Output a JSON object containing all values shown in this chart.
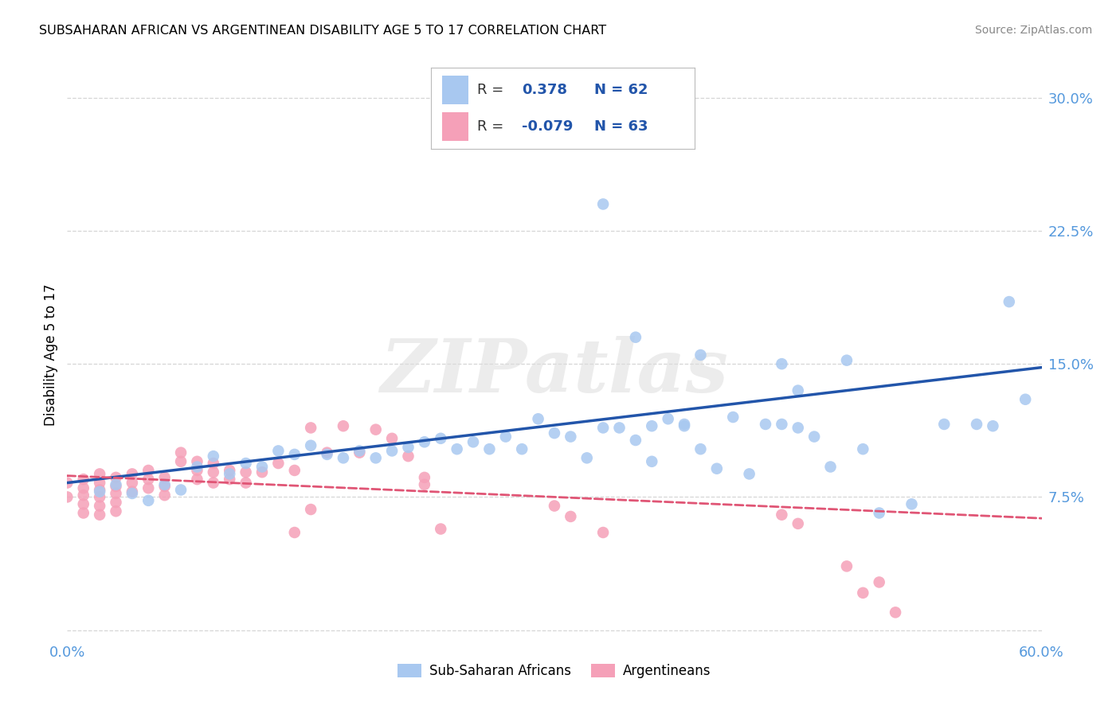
{
  "title": "SUBSAHARAN AFRICAN VS ARGENTINEAN DISABILITY AGE 5 TO 17 CORRELATION CHART",
  "source": "Source: ZipAtlas.com",
  "ylabel": "Disability Age 5 to 17",
  "xlim": [
    0.0,
    0.6
  ],
  "ylim": [
    -0.005,
    0.315
  ],
  "yticks": [
    0.0,
    0.075,
    0.15,
    0.225,
    0.3
  ],
  "ytick_labels": [
    "",
    "7.5%",
    "15.0%",
    "22.5%",
    "30.0%"
  ],
  "xticks": [
    0.0,
    0.15,
    0.3,
    0.45,
    0.6
  ],
  "xtick_labels": [
    "0.0%",
    "",
    "",
    "",
    "60.0%"
  ],
  "r_blue": "0.378",
  "n_blue": "62",
  "r_pink": "-0.079",
  "n_pink": "63",
  "legend_label_blue": "Sub-Saharan Africans",
  "legend_label_pink": "Argentineans",
  "blue_color": "#A8C8F0",
  "blue_line_color": "#2255AA",
  "pink_color": "#F5A0B8",
  "pink_line_color": "#E05575",
  "background_color": "#FFFFFF",
  "grid_color": "#CCCCCC",
  "watermark": "ZIPatlas",
  "blue_scatter_x": [
    0.33,
    0.02,
    0.03,
    0.04,
    0.05,
    0.06,
    0.07,
    0.08,
    0.09,
    0.1,
    0.11,
    0.12,
    0.13,
    0.14,
    0.15,
    0.16,
    0.17,
    0.18,
    0.19,
    0.2,
    0.21,
    0.22,
    0.23,
    0.24,
    0.25,
    0.26,
    0.27,
    0.28,
    0.29,
    0.3,
    0.31,
    0.32,
    0.33,
    0.34,
    0.35,
    0.36,
    0.37,
    0.38,
    0.39,
    0.4,
    0.41,
    0.42,
    0.43,
    0.44,
    0.45,
    0.46,
    0.47,
    0.48,
    0.49,
    0.5,
    0.52,
    0.54,
    0.56,
    0.57,
    0.58,
    0.38,
    0.39,
    0.35,
    0.36,
    0.44,
    0.45,
    0.59
  ],
  "blue_scatter_y": [
    0.24,
    0.078,
    0.082,
    0.077,
    0.073,
    0.082,
    0.079,
    0.092,
    0.098,
    0.088,
    0.094,
    0.092,
    0.101,
    0.099,
    0.104,
    0.099,
    0.097,
    0.101,
    0.097,
    0.101,
    0.103,
    0.106,
    0.108,
    0.102,
    0.106,
    0.102,
    0.109,
    0.102,
    0.119,
    0.111,
    0.109,
    0.097,
    0.114,
    0.114,
    0.107,
    0.115,
    0.119,
    0.116,
    0.102,
    0.091,
    0.12,
    0.088,
    0.116,
    0.116,
    0.114,
    0.109,
    0.092,
    0.152,
    0.102,
    0.066,
    0.071,
    0.116,
    0.116,
    0.115,
    0.185,
    0.115,
    0.155,
    0.165,
    0.095,
    0.15,
    0.135,
    0.13
  ],
  "pink_scatter_x": [
    0.0,
    0.0,
    0.01,
    0.01,
    0.01,
    0.01,
    0.01,
    0.02,
    0.02,
    0.02,
    0.02,
    0.02,
    0.02,
    0.03,
    0.03,
    0.03,
    0.03,
    0.03,
    0.04,
    0.04,
    0.04,
    0.05,
    0.05,
    0.05,
    0.06,
    0.06,
    0.06,
    0.07,
    0.07,
    0.08,
    0.08,
    0.08,
    0.09,
    0.09,
    0.09,
    0.1,
    0.1,
    0.11,
    0.11,
    0.12,
    0.13,
    0.14,
    0.15,
    0.16,
    0.17,
    0.18,
    0.19,
    0.2,
    0.21,
    0.22,
    0.22,
    0.23,
    0.14,
    0.15,
    0.3,
    0.31,
    0.33,
    0.44,
    0.45,
    0.48,
    0.49,
    0.5,
    0.51
  ],
  "pink_scatter_y": [
    0.083,
    0.075,
    0.085,
    0.08,
    0.076,
    0.071,
    0.066,
    0.088,
    0.083,
    0.079,
    0.075,
    0.07,
    0.065,
    0.086,
    0.081,
    0.077,
    0.072,
    0.067,
    0.088,
    0.083,
    0.078,
    0.09,
    0.085,
    0.08,
    0.086,
    0.081,
    0.076,
    0.1,
    0.095,
    0.095,
    0.09,
    0.085,
    0.094,
    0.089,
    0.083,
    0.09,
    0.085,
    0.089,
    0.083,
    0.089,
    0.094,
    0.09,
    0.114,
    0.1,
    0.115,
    0.1,
    0.113,
    0.108,
    0.098,
    0.086,
    0.082,
    0.057,
    0.055,
    0.068,
    0.07,
    0.064,
    0.055,
    0.065,
    0.06,
    0.036,
    0.021,
    0.027,
    0.01
  ]
}
